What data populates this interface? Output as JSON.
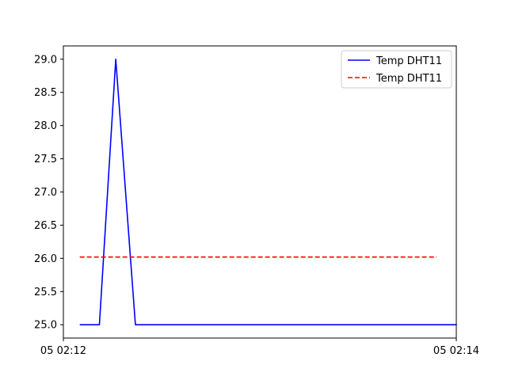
{
  "chart_data": {
    "type": "line",
    "x_tick_labels": [
      "05 02:12",
      "05 02:14"
    ],
    "xlim": [
      "02:12:00",
      "02:14:00"
    ],
    "ylim": [
      24.8,
      29.2
    ],
    "y_ticks": [
      25.0,
      25.5,
      26.0,
      26.5,
      27.0,
      27.5,
      28.0,
      28.5,
      29.0
    ],
    "y_tick_labels": [
      "25.0",
      "25.5",
      "26.0",
      "26.5",
      "27.0",
      "27.5",
      "28.0",
      "28.5",
      "29.0"
    ],
    "grid": false,
    "legend_placement": "top-right",
    "series": [
      {
        "name": "Temp DHT11",
        "color": "#0000ff",
        "style": "solid",
        "x": [
          "02:12:05",
          "02:12:11",
          "02:12:16",
          "02:12:22",
          "02:14:00",
          "02:13:54"
        ],
        "y": [
          25.0,
          25.0,
          29.0,
          25.0,
          25.0,
          25.0
        ]
      },
      {
        "name": "Temp DHT11",
        "color": "#ff0000",
        "style": "dashed",
        "x": [
          "02:12:05",
          "02:13:54"
        ],
        "y": [
          26.02,
          26.02
        ]
      }
    ]
  }
}
